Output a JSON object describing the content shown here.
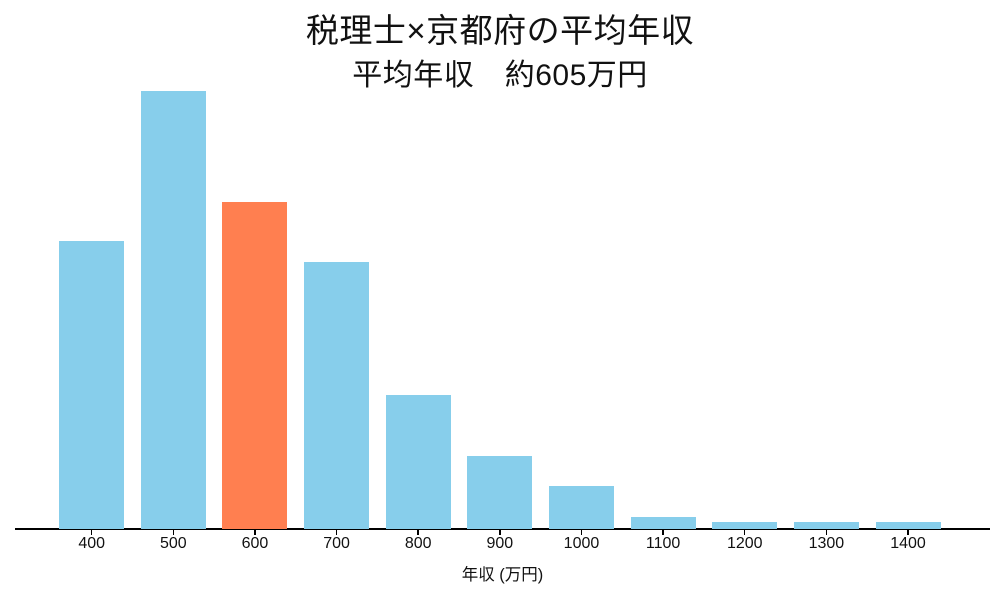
{
  "chart_data": {
    "type": "bar",
    "title": "税理士×京都府の平均年収",
    "subtitle": "平均年収　約605万円",
    "xlabel": "年収 (万円)",
    "categories": [
      "400",
      "500",
      "600",
      "700",
      "800",
      "900",
      "1000",
      "1100",
      "1200",
      "1300",
      "1400"
    ],
    "values": [
      65.8,
      100,
      74.7,
      61.0,
      30.5,
      16.7,
      9.8,
      2.8,
      1.7,
      1.7,
      1.7
    ],
    "value_unit": "relative bar height, tallest bar = 100 (no y-axis or gridlines shown)",
    "highlight_index": 2,
    "highlight_category": "600",
    "bar_color": "#87CEEB",
    "highlight_color": "#FF7F50",
    "axis_color": "#000000",
    "text_color": "#111111",
    "background_color": "#ffffff",
    "grid": false,
    "legend": false,
    "y_axis_shown": false
  }
}
